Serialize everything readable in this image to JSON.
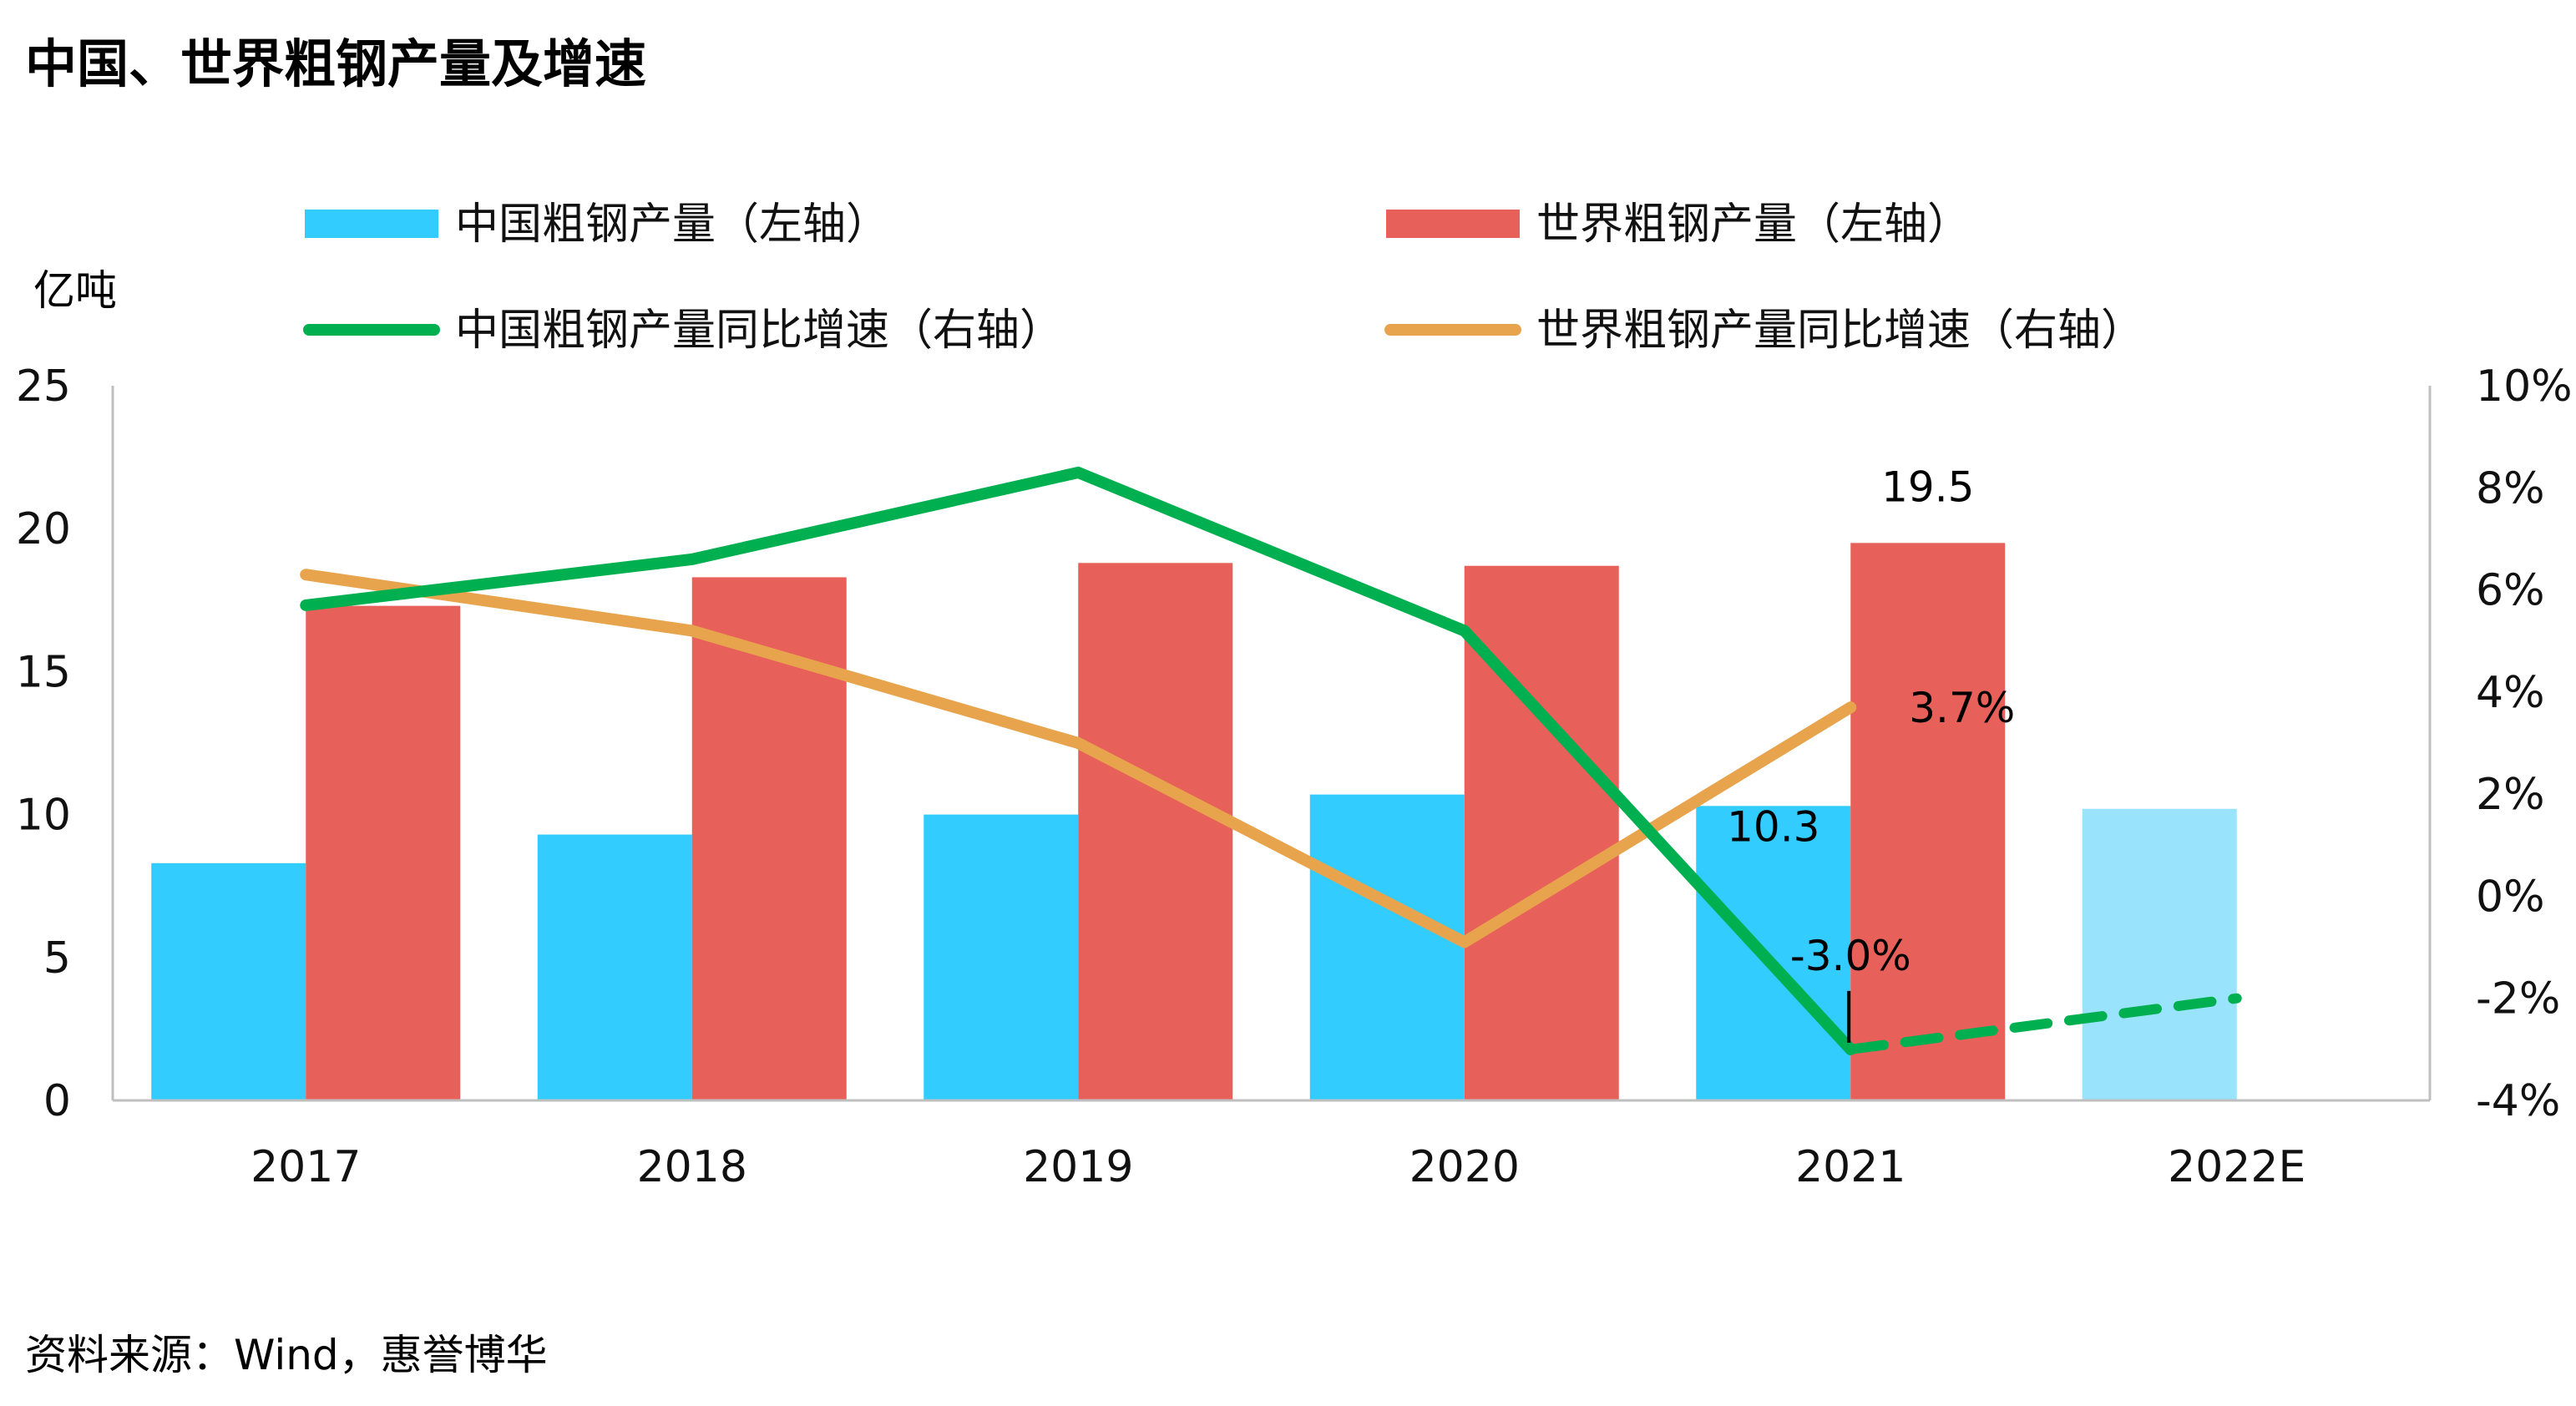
{
  "chart_data": {
    "type": "bar",
    "title": "中国、世界粗钢产量及增速",
    "source": "资料来源：Wind，惠誉博华",
    "left_axis": {
      "unit": "亿吨",
      "ylim": [
        0,
        25
      ],
      "ticks": [
        "0",
        "5",
        "10",
        "15",
        "20",
        "25"
      ]
    },
    "right_axis": {
      "ylim": [
        -4,
        10
      ],
      "ticks": [
        "-4%",
        "-2%",
        "0%",
        "2%",
        "4%",
        "6%",
        "8%",
        "10%"
      ]
    },
    "categories": [
      "2017",
      "2018",
      "2019",
      "2020",
      "2021",
      "2022E"
    ],
    "legend_placement": "top",
    "series": [
      {
        "name": "中国粗钢产量（左轴）",
        "kind": "bar",
        "axis": "left",
        "color": "#33ccff",
        "estimate_color": "#99e3fc",
        "values": [
          8.3,
          9.3,
          10.0,
          10.7,
          10.3,
          10.2
        ]
      },
      {
        "name": "世界粗钢产量（左轴）",
        "kind": "bar",
        "axis": "left",
        "color": "#e8605a",
        "values": [
          17.3,
          18.3,
          18.8,
          18.7,
          19.5,
          null
        ]
      },
      {
        "name": "中国粗钢产量同比增速（右轴）",
        "kind": "line",
        "axis": "right",
        "color": "#00b050",
        "values": [
          5.7,
          6.6,
          8.3,
          5.2,
          -3.0,
          -2.0
        ],
        "dashed_from_index": 4
      },
      {
        "name": "世界粗钢产量同比增速（右轴）",
        "kind": "line",
        "axis": "right",
        "color": "#e8a44d",
        "values": [
          6.3,
          5.2,
          3.0,
          -0.9,
          3.7,
          null
        ]
      }
    ],
    "annotations": [
      {
        "text": "19.5",
        "series": 1,
        "index": 4
      },
      {
        "text": "10.3",
        "series": 0,
        "index": 4
      },
      {
        "text": "3.7%",
        "series": 3,
        "index": 4
      },
      {
        "text": "-3.0%",
        "series": 2,
        "index": 4
      }
    ]
  }
}
